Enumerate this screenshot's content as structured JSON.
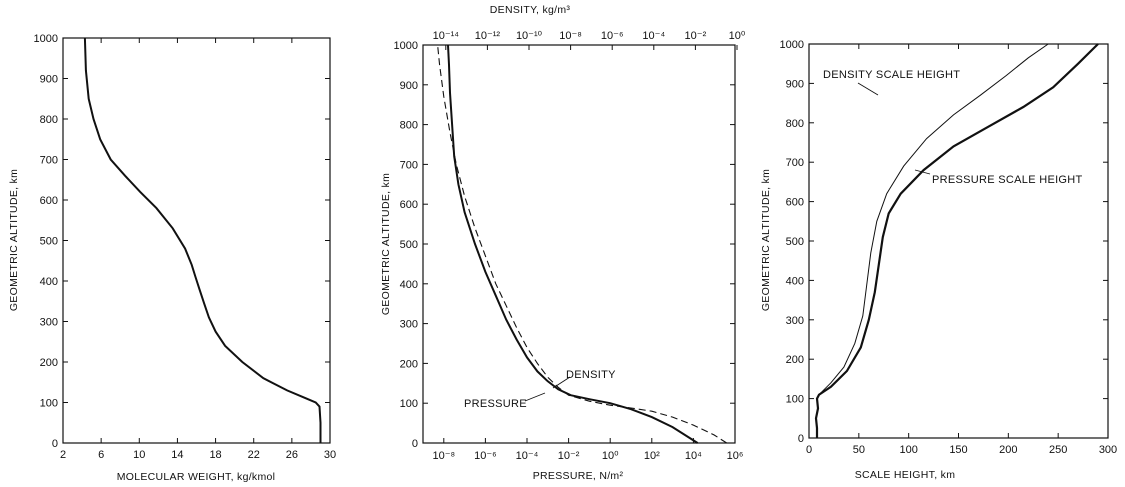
{
  "chart_data": [
    {
      "type": "line",
      "xlabel": "MOLECULAR WEIGHT, kg/kmol",
      "ylabel": "GEOMETRIC ALTITUDE, km",
      "xlim": [
        2,
        30
      ],
      "ylim": [
        0,
        1000
      ],
      "xticks": [
        "2",
        "6",
        "10",
        "14",
        "18",
        "22",
        "26",
        "30"
      ],
      "yticks": [
        "0",
        "100",
        "200",
        "300",
        "400",
        "500",
        "600",
        "700",
        "800",
        "900",
        "1000"
      ],
      "series": [
        {
          "x": [
            29.0,
            29.0,
            28.9,
            28.5,
            27.5,
            25.5,
            23.0,
            20.8,
            19.0,
            18.0,
            17.3,
            16.8,
            16.3,
            15.9,
            15.5,
            14.8,
            13.5,
            11.8,
            10.1,
            8.5,
            7.0,
            5.9,
            5.2,
            4.7,
            4.4,
            4.3
          ],
          "y": [
            0,
            50,
            90,
            100,
            110,
            130,
            160,
            200,
            240,
            275,
            310,
            345,
            380,
            410,
            440,
            480,
            530,
            580,
            620,
            660,
            700,
            750,
            800,
            850,
            920,
            1000
          ],
          "style": "solid"
        }
      ]
    },
    {
      "type": "line",
      "title": "DENSITY, kg/m³",
      "xlabel": "PRESSURE, N/m²",
      "ylabel": "GEOMETRIC ALTITUDE, km",
      "xscale": "log",
      "xlim": [
        "1e-9",
        "1e6"
      ],
      "ylim": [
        0,
        1000
      ],
      "xticks_bottom": [
        "10⁻⁸",
        "10⁻⁶",
        "10⁻⁴",
        "10⁻²",
        "10⁰",
        "10²",
        "10⁴",
        "10⁶"
      ],
      "xticks_top": [
        "10⁻¹⁴",
        "10⁻¹²",
        "10⁻¹⁰",
        "10⁻⁸",
        "10⁻⁶",
        "10⁻⁴",
        "10⁻²",
        "10⁰"
      ],
      "yticks": [
        "0",
        "100",
        "200",
        "300",
        "400",
        "500",
        "600",
        "700",
        "800",
        "900",
        "1000"
      ],
      "series": [
        {
          "name": "PRESSURE",
          "style": "solid",
          "log10_x": [
            4.2,
            3.0,
            2.0,
            1.0,
            0.0,
            -1.0,
            -1.9,
            -2.5,
            -3.0,
            -3.5,
            -4.0,
            -4.5,
            -5.0,
            -5.5,
            -6.0,
            -6.5,
            -7.0,
            -7.3,
            -7.5,
            -7.6,
            -7.7,
            -7.75,
            -7.8
          ],
          "y": [
            0,
            40,
            65,
            85,
            100,
            110,
            120,
            135,
            155,
            180,
            215,
            260,
            310,
            370,
            430,
            500,
            580,
            650,
            720,
            800,
            880,
            950,
            1000
          ]
        },
        {
          "name": "DENSITY",
          "style": "dashed",
          "log10_x": [
            5.6,
            5.0,
            4.0,
            3.0,
            2.0,
            1.0,
            0.0,
            -1.0,
            -2.0,
            -2.5,
            -3.0,
            -3.5,
            -4.0,
            -4.5,
            -5.0,
            -5.5,
            -6.0,
            -6.5,
            -7.0,
            -7.4,
            -7.7,
            -8.0,
            -8.2,
            -8.3
          ],
          "y": [
            0,
            20,
            45,
            65,
            80,
            88,
            95,
            105,
            120,
            140,
            165,
            200,
            240,
            290,
            345,
            400,
            470,
            540,
            620,
            700,
            780,
            870,
            950,
            1000
          ]
        }
      ],
      "annotations": [
        "DENSITY",
        "PRESSURE"
      ]
    },
    {
      "type": "line",
      "xlabel": "SCALE HEIGHT, km",
      "ylabel": "GEOMETRIC ALTITUDE, km",
      "xlim": [
        0,
        300
      ],
      "ylim": [
        0,
        1000
      ],
      "xticks": [
        "0",
        "50",
        "100",
        "150",
        "200",
        "250",
        "300"
      ],
      "yticks": [
        "0",
        "100",
        "200",
        "300",
        "400",
        "500",
        "600",
        "700",
        "800",
        "900",
        "1000"
      ],
      "series": [
        {
          "name": "PRESSURE SCALE HEIGHT",
          "style": "solid",
          "x": [
            8,
            8,
            7,
            9,
            8,
            10,
            22,
            38,
            52,
            60,
            66,
            70,
            74,
            80,
            92,
            115,
            145,
            180,
            215,
            245,
            270,
            290
          ],
          "y": [
            0,
            25,
            50,
            75,
            100,
            110,
            130,
            170,
            230,
            300,
            370,
            440,
            510,
            570,
            620,
            680,
            740,
            790,
            840,
            890,
            950,
            1000
          ]
        },
        {
          "name": "DENSITY SCALE HEIGHT",
          "style": "thin",
          "x": [
            10,
            14,
            22,
            35,
            46,
            54,
            58,
            62,
            68,
            78,
            95,
            118,
            145,
            172,
            198,
            220,
            240
          ],
          "y": [
            110,
            120,
            140,
            180,
            240,
            310,
            390,
            470,
            550,
            620,
            690,
            760,
            820,
            870,
            920,
            965,
            1000
          ]
        }
      ],
      "annotations": [
        "DENSITY SCALE HEIGHT",
        "PRESSURE SCALE HEIGHT"
      ]
    }
  ]
}
